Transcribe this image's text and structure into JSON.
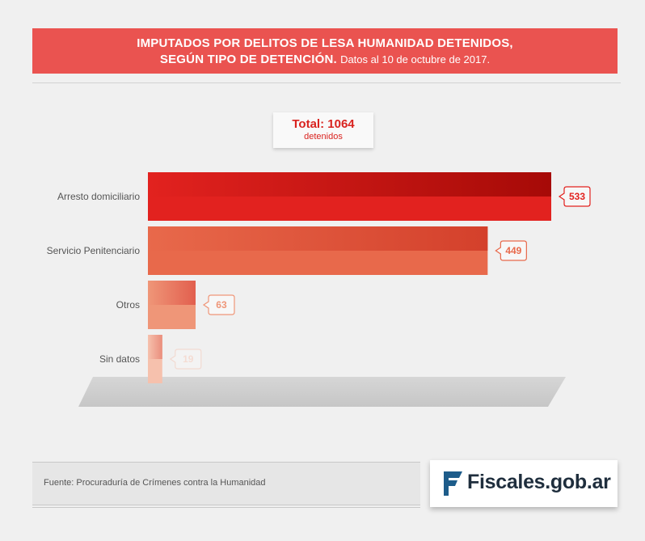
{
  "header": {
    "title_line1": "IMPUTADOS POR DELITOS DE LESA HUMANIDAD DETENIDOS,",
    "title_line2": "SEGÚN TIPO DE DETENCIÓN.",
    "subtitle": "Datos al 10 de octubre de 2017."
  },
  "total": {
    "label": "Total: 1064",
    "unit": "detenidos"
  },
  "chart_data": {
    "type": "bar",
    "orientation": "horizontal",
    "categories": [
      "Arresto domiciliario",
      "Servicio Penitenciario",
      "Otros",
      "Sin datos"
    ],
    "values": [
      533,
      449,
      63,
      19
    ],
    "value_labels": [
      "533",
      "449",
      "63",
      "19"
    ],
    "colors": [
      "#e2221f",
      "#e8694b",
      "#ef9678",
      "#f6c1ad"
    ],
    "grid": false,
    "legend": "none"
  },
  "footer": {
    "source": "Fuente: Procuraduría de Crímenes contra la Humanidad"
  },
  "logo": {
    "text": "Fiscales.gob.ar",
    "colors": [
      "#1f2e3d",
      "#1d5c8a"
    ]
  }
}
